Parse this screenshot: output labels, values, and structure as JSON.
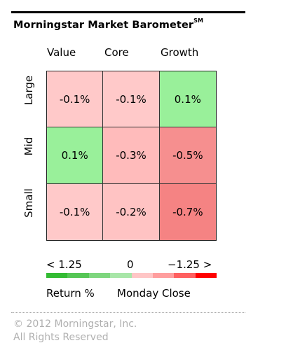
{
  "title": "Morningstar Market Barometer",
  "title_mark": "SM",
  "columns": [
    "Value",
    "Core",
    "Growth"
  ],
  "rows": [
    "Large",
    "Mid",
    "Small"
  ],
  "cells": [
    [
      {
        "value": "-0.1%",
        "color": "#ffc9c9"
      },
      {
        "value": "-0.1%",
        "color": "#ffc9c9"
      },
      {
        "value": "0.1%",
        "color": "#99f09a"
      }
    ],
    [
      {
        "value": "0.1%",
        "color": "#99f09a"
      },
      {
        "value": "-0.3%",
        "color": "#ffbbbb"
      },
      {
        "value": "-0.5%",
        "color": "#f68f8f"
      }
    ],
    [
      {
        "value": "-0.1%",
        "color": "#ffc9c9"
      },
      {
        "value": "-0.2%",
        "color": "#ffc3c3"
      },
      {
        "value": "-0.7%",
        "color": "#f58383"
      }
    ]
  ],
  "scale": {
    "left": "< 1.25",
    "mid": "0",
    "right": "−1.25 >",
    "colors": [
      "#33bb33",
      "#55c655",
      "#7ed67e",
      "#a8e6a8",
      "#ffc6c6",
      "#ff9e9e",
      "#ff6060",
      "#ff0000"
    ]
  },
  "legend_left": "Return %",
  "legend_right": "Monday Close",
  "copyright": "© 2012 Morningstar, Inc.",
  "copyright_line2": "All Rights Reserved"
}
